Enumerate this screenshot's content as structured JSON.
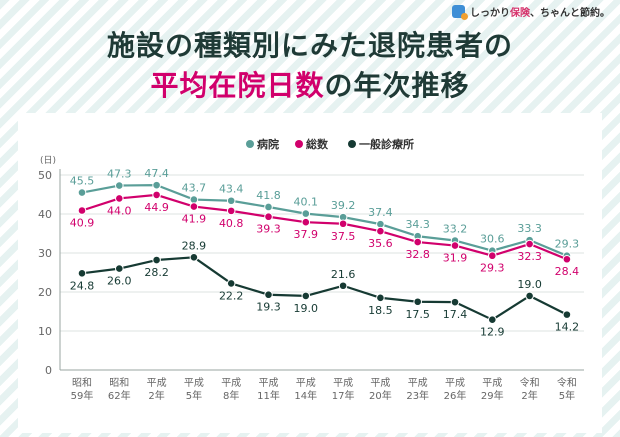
{
  "brand": {
    "prefix": "しっかり",
    "highlight": "保険",
    "suffix": "、ちゃんと節約。"
  },
  "title": {
    "line1": "施設の種類別にみた退院患者の",
    "line2_a": "平均在院日数",
    "line2_b": "の",
    "line2_c": "年次推移"
  },
  "colors": {
    "hospital": "#5a9e98",
    "total": "#d1006c",
    "clinic": "#163a33",
    "grid": "#dde3e1",
    "tick": "#666666"
  },
  "chart_data": {
    "type": "line",
    "ylabel": "(日)",
    "ylim": [
      0,
      50
    ],
    "yticks": [
      0,
      10,
      20,
      30,
      40,
      50
    ],
    "categories": [
      [
        "昭和",
        "59年"
      ],
      [
        "昭和",
        "62年"
      ],
      [
        "平成",
        "2年"
      ],
      [
        "平成",
        "5年"
      ],
      [
        "平成",
        "8年"
      ],
      [
        "平成",
        "11年"
      ],
      [
        "平成",
        "14年"
      ],
      [
        "平成",
        "17年"
      ],
      [
        "平成",
        "20年"
      ],
      [
        "平成",
        "23年"
      ],
      [
        "平成",
        "26年"
      ],
      [
        "平成",
        "29年"
      ],
      [
        "令和",
        "2年"
      ],
      [
        "令和",
        "5年"
      ]
    ],
    "series": [
      {
        "name": "病院",
        "color": "#5a9e98",
        "label_pos": "above",
        "values": [
          45.5,
          47.3,
          47.4,
          43.7,
          43.4,
          41.8,
          40.1,
          39.2,
          37.4,
          34.3,
          33.2,
          30.6,
          33.3,
          29.3
        ]
      },
      {
        "name": "総数",
        "color": "#d1006c",
        "label_pos": "below",
        "values": [
          40.9,
          44.0,
          44.9,
          41.9,
          40.8,
          39.3,
          37.9,
          37.5,
          35.6,
          32.8,
          31.9,
          29.3,
          32.3,
          28.4
        ]
      },
      {
        "name": "一般診療所",
        "color": "#163a33",
        "label_pos": "mixed",
        "values": [
          24.8,
          26.0,
          28.2,
          28.9,
          22.2,
          19.3,
          19.0,
          21.6,
          18.5,
          17.5,
          17.4,
          12.9,
          19.0,
          14.2
        ]
      }
    ],
    "legend_position": "top",
    "grid": true
  }
}
